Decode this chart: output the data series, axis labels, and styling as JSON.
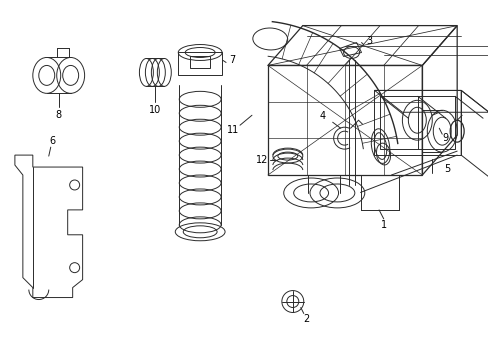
{
  "bg_color": "#ffffff",
  "line_color": "#2a2a2a",
  "lw": 0.7,
  "fig_width": 4.89,
  "fig_height": 3.6,
  "dpi": 100
}
